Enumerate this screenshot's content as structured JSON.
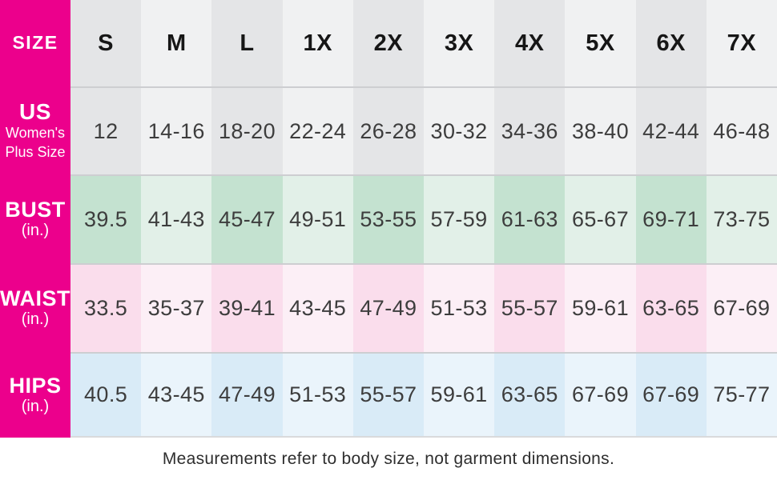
{
  "chart_data": {
    "type": "table",
    "corner_label": "SIZE",
    "columns": [
      "S",
      "M",
      "L",
      "1X",
      "2X",
      "3X",
      "4X",
      "5X",
      "6X",
      "7X"
    ],
    "rows": [
      {
        "label": "US",
        "sublabel_line1": "Women's",
        "sublabel_line2": "Plus Size",
        "theme": "gray",
        "values": [
          "12",
          "14-16",
          "18-20",
          "22-24",
          "26-28",
          "30-32",
          "34-36",
          "38-40",
          "42-44",
          "46-48"
        ]
      },
      {
        "label": "BUST",
        "sublabel_line1": "(in.)",
        "theme": "green",
        "values": [
          "39.5",
          "41-43",
          "45-47",
          "49-51",
          "53-55",
          "57-59",
          "61-63",
          "65-67",
          "69-71",
          "73-75"
        ]
      },
      {
        "label": "WAIST",
        "sublabel_line1": "(in.)",
        "theme": "rose",
        "values": [
          "33.5",
          "35-37",
          "39-41",
          "43-45",
          "47-49",
          "51-53",
          "55-57",
          "59-61",
          "63-65",
          "67-69"
        ]
      },
      {
        "label": "HIPS",
        "sublabel_line1": "(in.)",
        "theme": "blue",
        "values": [
          "40.5",
          "43-45",
          "47-49",
          "51-53",
          "55-57",
          "59-61",
          "63-65",
          "67-69",
          "67-69",
          "75-77"
        ]
      }
    ],
    "note": "Measurements refer to body size, not garment dimensions.",
    "colors": {
      "accent_magenta": "#EC008C",
      "label_text": "#FFFFFF",
      "gray_dark": "#E4E5E7",
      "gray_light": "#F0F1F2",
      "green_dark": "#C4E2D0",
      "green_light": "#E2F0E8",
      "pink_dark": "#FADDEC",
      "pink_light": "#FCEFF6",
      "blue_dark": "#D9EBF7",
      "blue_light": "#EAF4FB",
      "divider": "#CDCED1",
      "value_text": "#3D3D3D"
    }
  }
}
